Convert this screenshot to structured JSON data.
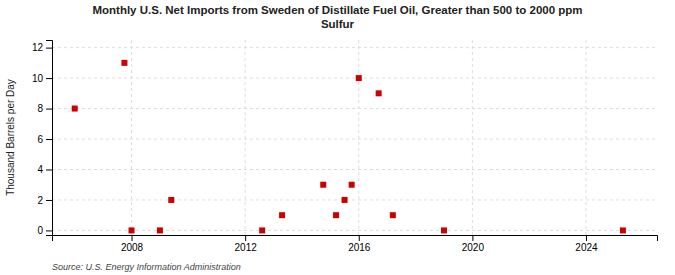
{
  "chart_data": {
    "type": "scatter",
    "title": "Monthly U.S. Net Imports from Sweden of Distillate Fuel Oil, Greater than 500 to 2000 ppm\nSulfur",
    "y_label": "Thousand Barrels per Day",
    "source": "Source: U.S. Energy Information Administration",
    "x": [
      2006.0,
      2007.75,
      2008.0,
      2009.0,
      2009.4,
      2012.6,
      2013.3,
      2014.75,
      2015.2,
      2015.5,
      2015.75,
      2016.0,
      2016.7,
      2017.2,
      2019.0,
      2025.3
    ],
    "values": [
      8,
      11,
      0,
      0,
      2,
      0,
      1,
      3,
      1,
      2,
      3,
      10,
      9,
      1,
      0,
      0
    ],
    "color": "#cc0000",
    "marker": "square",
    "xlim": [
      2005.2,
      2026.5
    ],
    "ylim": [
      -0.3,
      12.5
    ],
    "xticks": [
      2008,
      2012,
      2016,
      2020,
      2024
    ],
    "yticks": [
      0,
      2,
      4,
      6,
      8,
      10,
      12
    ],
    "grid": true
  }
}
